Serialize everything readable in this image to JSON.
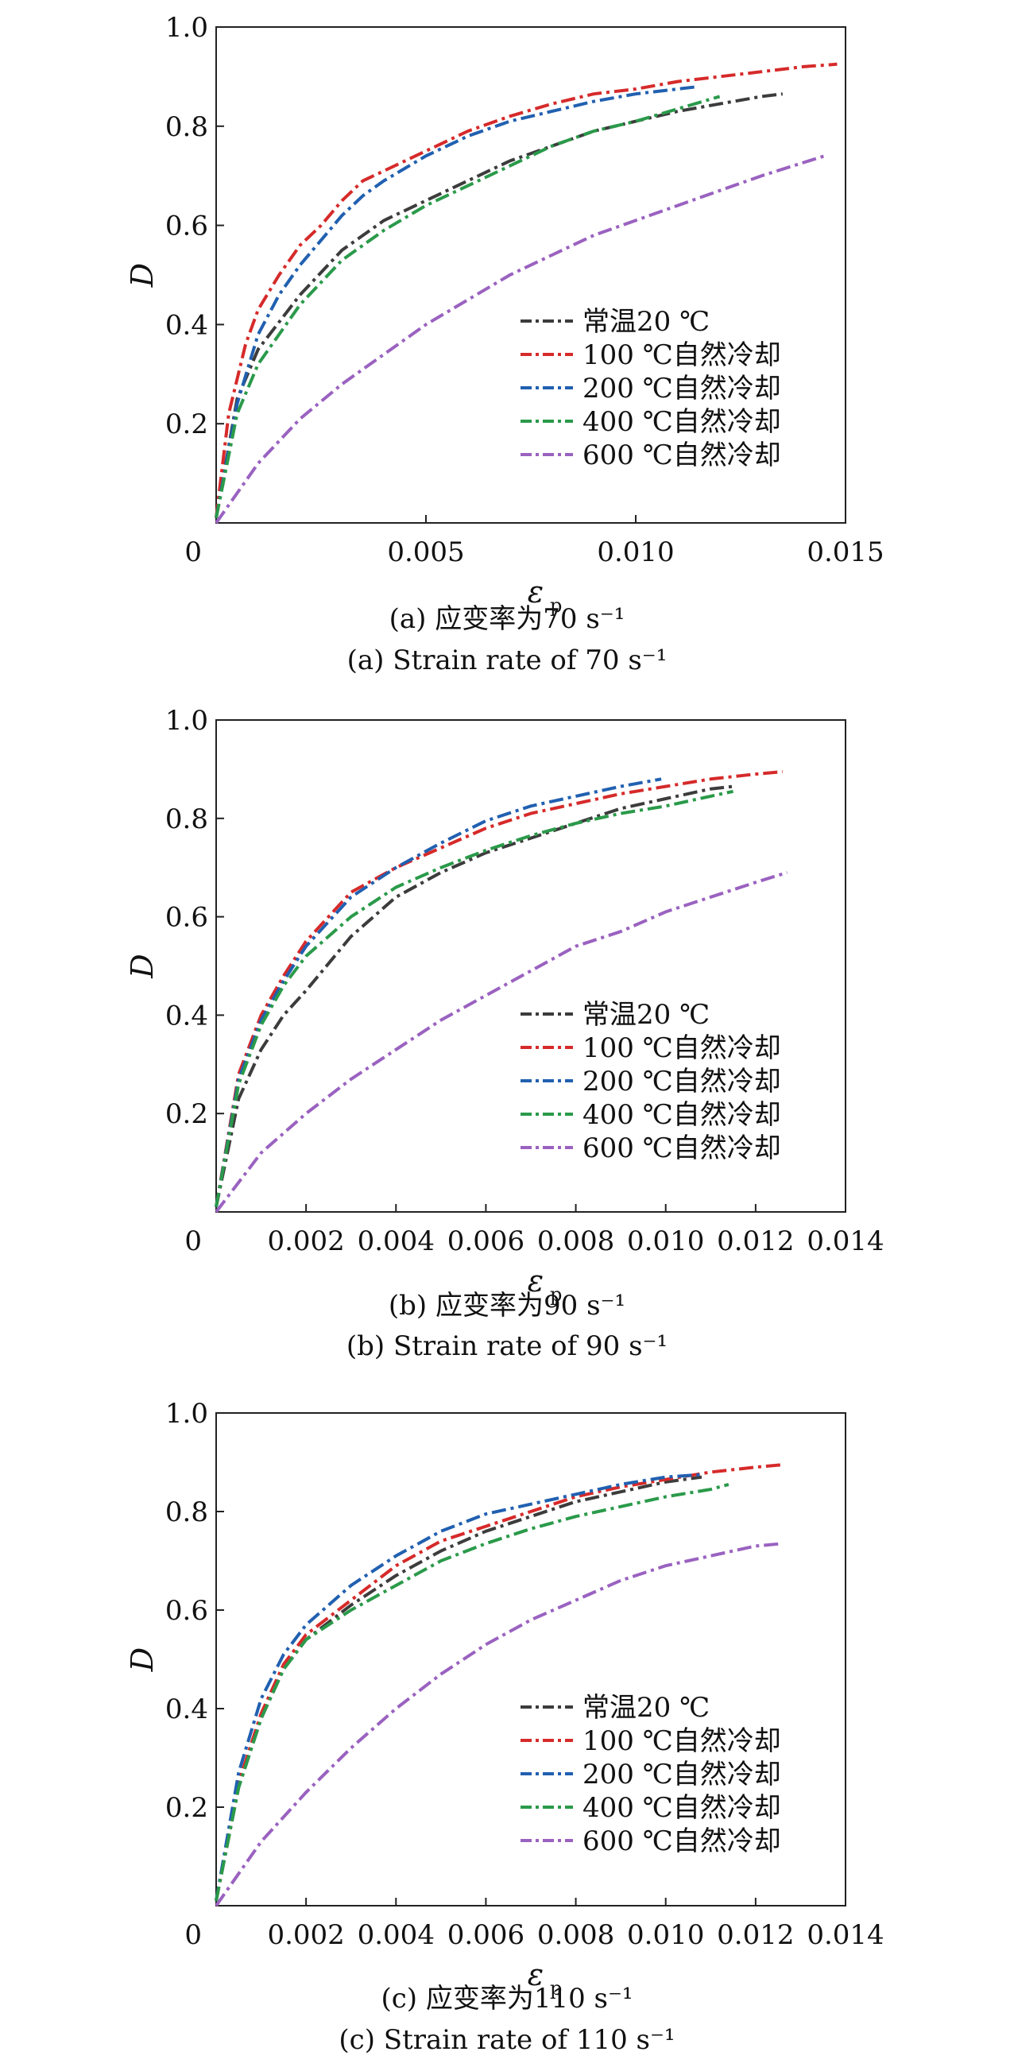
{
  "chart_data": [
    {
      "type": "line",
      "xlabel": "ε",
      "xlabel_sub": "p",
      "ylabel": "D",
      "xlim": [
        0,
        0.015
      ],
      "ylim": [
        0,
        1.0
      ],
      "x_ticks": [
        0,
        0.005,
        0.01,
        0.015
      ],
      "x_tick_labels": [
        "0",
        "0.005",
        "0.010",
        "0.015"
      ],
      "y_ticks": [
        0.2,
        0.4,
        0.6,
        0.8,
        1.0
      ],
      "y_tick_labels": [
        "0.2",
        "0.4",
        "0.6",
        "0.8",
        "1.0"
      ],
      "legend_position": "lower-right",
      "caption_cn": "(a) 应变率为70 s⁻¹",
      "caption_en": "(a) Strain rate of 70 s⁻¹",
      "series": [
        {
          "name": "常温20 ℃",
          "color": "#3c3c3c",
          "x": [
            0,
            0.0005,
            0.001,
            0.002,
            0.003,
            0.004,
            0.005,
            0.006,
            0.007,
            0.008,
            0.009,
            0.01,
            0.011,
            0.012,
            0.013,
            0.0135
          ],
          "y": [
            0.01,
            0.25,
            0.35,
            0.46,
            0.55,
            0.61,
            0.65,
            0.69,
            0.73,
            0.76,
            0.79,
            0.81,
            0.83,
            0.845,
            0.86,
            0.865
          ]
        },
        {
          "name": "100 ℃自然冷却",
          "color": "#d62a2a",
          "x": [
            0,
            0.0003,
            0.0007,
            0.001,
            0.0015,
            0.002,
            0.0025,
            0.003,
            0.0035,
            0.004,
            0.005,
            0.006,
            0.007,
            0.008,
            0.009,
            0.01,
            0.011,
            0.012,
            0.013,
            0.014,
            0.0148
          ],
          "y": [
            0.01,
            0.22,
            0.36,
            0.43,
            0.5,
            0.56,
            0.6,
            0.65,
            0.69,
            0.71,
            0.75,
            0.79,
            0.82,
            0.845,
            0.865,
            0.875,
            0.89,
            0.9,
            0.91,
            0.92,
            0.925
          ]
        },
        {
          "name": "200 ℃自然冷却",
          "color": "#2160b0",
          "x": [
            0,
            0.0005,
            0.001,
            0.0015,
            0.002,
            0.0025,
            0.003,
            0.0035,
            0.004,
            0.005,
            0.006,
            0.007,
            0.008,
            0.009,
            0.01,
            0.011,
            0.0115
          ],
          "y": [
            0.01,
            0.24,
            0.38,
            0.46,
            0.52,
            0.57,
            0.62,
            0.66,
            0.69,
            0.74,
            0.78,
            0.81,
            0.83,
            0.85,
            0.865,
            0.875,
            0.88
          ]
        },
        {
          "name": "400 ℃自然冷却",
          "color": "#2a9a4a",
          "x": [
            0,
            0.0005,
            0.001,
            0.002,
            0.003,
            0.004,
            0.005,
            0.006,
            0.007,
            0.008,
            0.009,
            0.01,
            0.011,
            0.012
          ],
          "y": [
            0.01,
            0.22,
            0.32,
            0.44,
            0.53,
            0.59,
            0.64,
            0.68,
            0.72,
            0.76,
            0.79,
            0.81,
            0.835,
            0.86
          ]
        },
        {
          "name": "600 ℃自然冷却",
          "color": "#9a62c0",
          "x": [
            0,
            0.001,
            0.002,
            0.003,
            0.004,
            0.005,
            0.006,
            0.007,
            0.008,
            0.009,
            0.01,
            0.011,
            0.012,
            0.013,
            0.0145
          ],
          "y": [
            0,
            0.12,
            0.21,
            0.28,
            0.34,
            0.4,
            0.45,
            0.5,
            0.54,
            0.58,
            0.61,
            0.64,
            0.67,
            0.7,
            0.74
          ]
        }
      ]
    },
    {
      "type": "line",
      "xlabel": "ε",
      "xlabel_sub": "p",
      "ylabel": "D",
      "xlim": [
        0,
        0.014
      ],
      "ylim": [
        0,
        1.0
      ],
      "x_ticks": [
        0,
        0.002,
        0.004,
        0.006,
        0.008,
        0.01,
        0.012,
        0.014
      ],
      "x_tick_labels": [
        "0",
        "0.002",
        "0.004",
        "0.006",
        "0.008",
        "0.010",
        "0.012",
        "0.014"
      ],
      "y_ticks": [
        0.2,
        0.4,
        0.6,
        0.8,
        1.0
      ],
      "y_tick_labels": [
        "0.2",
        "0.4",
        "0.6",
        "0.8",
        "1.0"
      ],
      "legend_position": "lower-right",
      "caption_cn": "(b) 应变率为90 s⁻¹",
      "caption_en": "(b) Strain rate of 90 s⁻¹",
      "series": [
        {
          "name": "常温20 ℃",
          "color": "#3c3c3c",
          "x": [
            0,
            0.0005,
            0.001,
            0.0015,
            0.002,
            0.003,
            0.004,
            0.005,
            0.006,
            0.007,
            0.008,
            0.009,
            0.01,
            0.011,
            0.0115
          ],
          "y": [
            0.01,
            0.23,
            0.33,
            0.4,
            0.45,
            0.56,
            0.64,
            0.69,
            0.73,
            0.76,
            0.79,
            0.82,
            0.84,
            0.86,
            0.865
          ]
        },
        {
          "name": "100 ℃自然冷却",
          "color": "#d62a2a",
          "x": [
            0,
            0.0005,
            0.001,
            0.0015,
            0.002,
            0.003,
            0.004,
            0.005,
            0.006,
            0.007,
            0.008,
            0.009,
            0.01,
            0.011,
            0.012,
            0.0126
          ],
          "y": [
            0.01,
            0.28,
            0.4,
            0.48,
            0.55,
            0.65,
            0.7,
            0.74,
            0.78,
            0.81,
            0.83,
            0.85,
            0.865,
            0.88,
            0.89,
            0.895
          ]
        },
        {
          "name": "200 ℃自然冷却",
          "color": "#2160b0",
          "x": [
            0,
            0.0005,
            0.001,
            0.0015,
            0.002,
            0.003,
            0.004,
            0.005,
            0.006,
            0.007,
            0.008,
            0.009,
            0.0099
          ],
          "y": [
            0.01,
            0.27,
            0.39,
            0.47,
            0.54,
            0.64,
            0.7,
            0.75,
            0.795,
            0.825,
            0.845,
            0.865,
            0.88
          ]
        },
        {
          "name": "400 ℃自然冷却",
          "color": "#2a9a4a",
          "x": [
            0,
            0.0005,
            0.001,
            0.0015,
            0.002,
            0.003,
            0.004,
            0.005,
            0.006,
            0.007,
            0.008,
            0.009,
            0.01,
            0.011,
            0.0115
          ],
          "y": [
            0.01,
            0.26,
            0.38,
            0.46,
            0.52,
            0.6,
            0.66,
            0.7,
            0.735,
            0.765,
            0.79,
            0.81,
            0.825,
            0.845,
            0.855
          ]
        },
        {
          "name": "600 ℃自然冷却",
          "color": "#9a62c0",
          "x": [
            0,
            0.001,
            0.002,
            0.003,
            0.004,
            0.005,
            0.006,
            0.007,
            0.008,
            0.009,
            0.01,
            0.011,
            0.012,
            0.0127
          ],
          "y": [
            0,
            0.12,
            0.2,
            0.27,
            0.33,
            0.39,
            0.44,
            0.49,
            0.54,
            0.57,
            0.61,
            0.64,
            0.67,
            0.69
          ]
        }
      ]
    },
    {
      "type": "line",
      "xlabel": "ε",
      "xlabel_sub": "p",
      "ylabel": "D",
      "xlim": [
        0,
        0.014
      ],
      "ylim": [
        0,
        1.0
      ],
      "x_ticks": [
        0,
        0.002,
        0.004,
        0.006,
        0.008,
        0.01,
        0.012,
        0.014
      ],
      "x_tick_labels": [
        "0",
        "0.002",
        "0.004",
        "0.006",
        "0.008",
        "0.010",
        "0.012",
        "0.014"
      ],
      "y_ticks": [
        0.2,
        0.4,
        0.6,
        0.8,
        1.0
      ],
      "y_tick_labels": [
        "0.2",
        "0.4",
        "0.6",
        "0.8",
        "1.0"
      ],
      "legend_position": "lower-right",
      "caption_cn": "(c) 应变率为110 s⁻¹",
      "caption_en": "(c) Strain rate of 110 s⁻¹",
      "series": [
        {
          "name": "常温20 ℃",
          "color": "#3c3c3c",
          "x": [
            0,
            0.0005,
            0.001,
            0.0015,
            0.002,
            0.003,
            0.004,
            0.005,
            0.006,
            0.007,
            0.008,
            0.009,
            0.01,
            0.0108
          ],
          "y": [
            0.01,
            0.24,
            0.38,
            0.48,
            0.54,
            0.61,
            0.67,
            0.72,
            0.76,
            0.79,
            0.82,
            0.84,
            0.86,
            0.87
          ]
        },
        {
          "name": "100 ℃自然冷却",
          "color": "#d62a2a",
          "x": [
            0,
            0.0005,
            0.001,
            0.0015,
            0.002,
            0.003,
            0.004,
            0.005,
            0.006,
            0.007,
            0.008,
            0.009,
            0.01,
            0.011,
            0.012,
            0.0126
          ],
          "y": [
            0.01,
            0.25,
            0.39,
            0.49,
            0.55,
            0.62,
            0.69,
            0.74,
            0.77,
            0.8,
            0.83,
            0.85,
            0.865,
            0.88,
            0.89,
            0.895
          ]
        },
        {
          "name": "200 ℃自然冷却",
          "color": "#2160b0",
          "x": [
            0,
            0.0005,
            0.001,
            0.0015,
            0.002,
            0.003,
            0.004,
            0.005,
            0.006,
            0.007,
            0.008,
            0.009,
            0.01,
            0.0108
          ],
          "y": [
            0.01,
            0.27,
            0.42,
            0.51,
            0.57,
            0.65,
            0.71,
            0.76,
            0.795,
            0.815,
            0.835,
            0.855,
            0.87,
            0.875
          ]
        },
        {
          "name": "400 ℃自然冷却",
          "color": "#2a9a4a",
          "x": [
            0,
            0.0005,
            0.001,
            0.0015,
            0.002,
            0.003,
            0.004,
            0.005,
            0.006,
            0.007,
            0.008,
            0.009,
            0.01,
            0.011,
            0.0114
          ],
          "y": [
            0.01,
            0.24,
            0.38,
            0.48,
            0.54,
            0.6,
            0.65,
            0.7,
            0.735,
            0.765,
            0.79,
            0.81,
            0.83,
            0.845,
            0.855
          ]
        },
        {
          "name": "600 ℃自然冷却",
          "color": "#9a62c0",
          "x": [
            0,
            0.001,
            0.002,
            0.003,
            0.004,
            0.005,
            0.006,
            0.007,
            0.008,
            0.009,
            0.01,
            0.011,
            0.012,
            0.0126
          ],
          "y": [
            0,
            0.13,
            0.23,
            0.32,
            0.4,
            0.47,
            0.53,
            0.58,
            0.62,
            0.66,
            0.69,
            0.71,
            0.73,
            0.735
          ]
        }
      ]
    }
  ]
}
